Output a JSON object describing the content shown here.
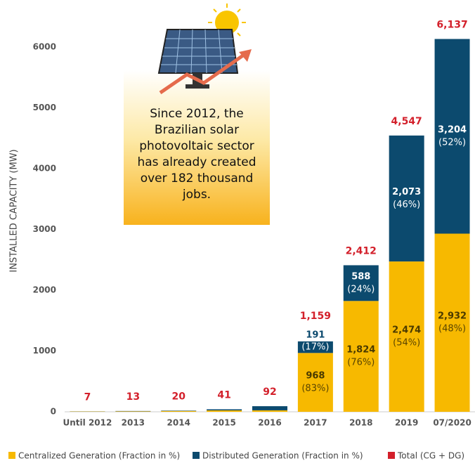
{
  "chart_data": {
    "type": "stacked_bar",
    "y_label": "INSTALLED CAPACITY (MW)",
    "categories": [
      "Until 2012",
      "2013",
      "2014",
      "2015",
      "2016",
      "2017",
      "2018",
      "2019",
      "07/2020"
    ],
    "series": [
      {
        "name": "Centralized Generation (Fraction in %)",
        "color": "#f7b900",
        "values": [
          5,
          8,
          14,
          23,
          24,
          968,
          1824,
          2474,
          2932
        ],
        "value_labels": [
          null,
          null,
          null,
          null,
          null,
          "968",
          "1,824",
          "2,474",
          "2,932"
        ],
        "percent_labels": [
          null,
          null,
          null,
          null,
          null,
          "(83%)",
          "(76%)",
          "(54%)",
          "(48%)"
        ]
      },
      {
        "name": "Distributed Generation (Fraction in %)",
        "color": "#0c4a6e",
        "values": [
          2,
          5,
          6,
          18,
          68,
          191,
          588,
          2073,
          3204
        ],
        "value_labels": [
          null,
          null,
          null,
          null,
          null,
          "191",
          "588",
          "2,073",
          "3,204"
        ],
        "percent_labels": [
          null,
          null,
          null,
          null,
          null,
          "(17%)",
          "(24%)",
          "(46%)",
          "(52%)"
        ]
      }
    ],
    "totals": {
      "name": "Total (CG + DG)",
      "color": "#d3202b",
      "values": [
        7,
        13,
        20,
        41,
        92,
        1159,
        2412,
        4547,
        6137
      ],
      "value_labels": [
        "7",
        "13",
        "20",
        "41",
        "92",
        "1,159",
        "2,412",
        "4,547",
        "6,137"
      ]
    },
    "annotation": [
      "Since 2012, the",
      "Brazilian solar",
      " photovoltaic sector",
      "has already created",
      "over 182 thousand",
      "jobs."
    ],
    "ylim": [
      0,
      6500
    ],
    "yticks": [
      0,
      1000,
      2000,
      3000,
      4000,
      5000,
      6000
    ],
    "grid": false
  }
}
